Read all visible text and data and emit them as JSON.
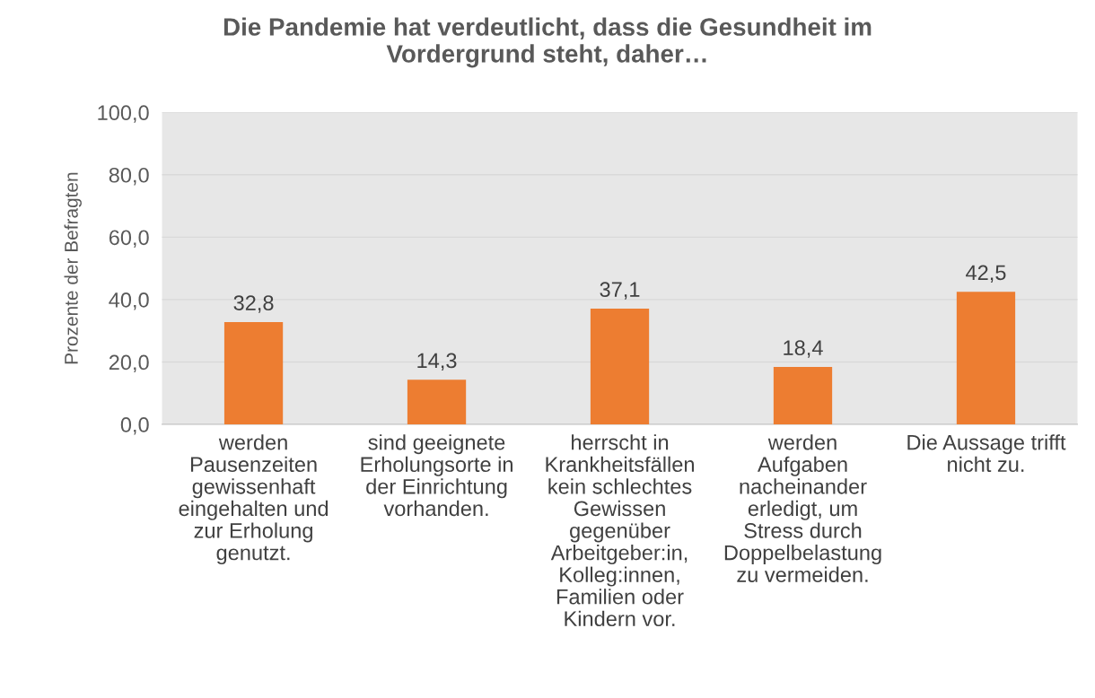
{
  "chart_data": {
    "type": "bar",
    "title": "Die Pandemie hat verdeutlicht, dass die Gesundheit im\nVordergrund steht, daher…",
    "ylabel": "Prozente der Befragten",
    "categories": [
      "werden\nPausenzeiten\ngewissenhaft\neingehalten und\nzur Erholung\ngenutzt.",
      "sind geeignete\nErholungsorte in\nder Einrichtung\nvorhanden.",
      "herrscht in\nKrankheitsfällen\nkein schlechtes\nGewissen\ngegenüber\nArbeitgeber:in,\nKolleg:innen,\nFamilien oder\nKindern vor.",
      "werden\nAufgaben\nnacheinander\nerledigt, um\nStress durch\nDoppelbelastung\nzu vermeiden.",
      "Die Aussage trifft\nnicht zu."
    ],
    "values": [
      32.8,
      14.3,
      37.1,
      18.4,
      42.5
    ],
    "color": "#ed7d31",
    "value_labels": [
      "32,8",
      "14,3",
      "37,1",
      "18,4",
      "42,5"
    ],
    "ylim": [
      0,
      100
    ],
    "yticks": [
      {
        "value": 0,
        "label": "0,0"
      },
      {
        "value": 20,
        "label": "20,0"
      },
      {
        "value": 40,
        "label": "40,0"
      },
      {
        "value": 60,
        "label": "60,0"
      },
      {
        "value": 80,
        "label": "80,0"
      },
      {
        "value": 100,
        "label": "100,0"
      }
    ],
    "grid": "y"
  }
}
